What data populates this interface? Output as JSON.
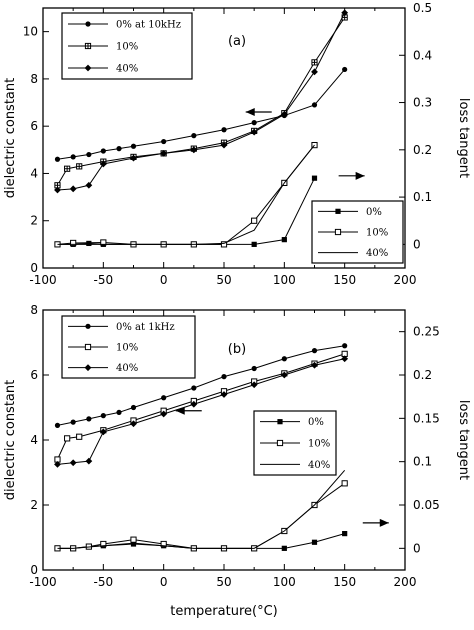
{
  "chart_data": [
    {
      "type": "line",
      "panel_label": "(a)",
      "xlabel": "",
      "ylabel": "dielectric constant",
      "y2label": "loss tangent",
      "xlim": [
        -100,
        200
      ],
      "ylim": [
        0,
        11
      ],
      "y2lim": [
        -0.05,
        0.5
      ],
      "xticks": [
        -100,
        -50,
        0,
        50,
        100,
        150,
        200
      ],
      "yticks": [
        0,
        2,
        4,
        6,
        8,
        10
      ],
      "y2ticks": [
        0,
        0.1,
        0.2,
        0.3,
        0.4,
        0.5
      ],
      "legend_dielectric": {
        "position": "top-left",
        "entries": [
          "0% at 10kHz",
          "10%",
          "40%"
        ]
      },
      "legend_loss": {
        "position": "bottom-right",
        "entries": [
          "0%",
          "10%",
          "40%"
        ]
      },
      "series": [
        {
          "name": "0% at 10kHz",
          "axis": "left",
          "marker": "filled-circle",
          "x": [
            -88,
            -75,
            -62,
            -50,
            -37,
            -25,
            0,
            25,
            50,
            75,
            100,
            125,
            150
          ],
          "y": [
            4.6,
            4.7,
            4.8,
            4.95,
            5.05,
            5.15,
            5.35,
            5.6,
            5.85,
            6.15,
            6.45,
            6.9,
            8.4
          ]
        },
        {
          "name": "10%",
          "axis": "left",
          "marker": "crossed-square",
          "x": [
            -88,
            -80,
            -70,
            -50,
            -25,
            0,
            25,
            50,
            75,
            100,
            125,
            150
          ],
          "y": [
            3.5,
            4.2,
            4.3,
            4.5,
            4.7,
            4.85,
            5.05,
            5.3,
            5.8,
            6.55,
            8.7,
            10.6
          ]
        },
        {
          "name": "40%",
          "axis": "left",
          "marker": "filled-diamond",
          "x": [
            -88,
            -75,
            -62,
            -50,
            -25,
            0,
            25,
            50,
            75,
            100,
            125,
            150
          ],
          "y": [
            3.3,
            3.35,
            3.5,
            4.4,
            4.65,
            4.85,
            5.0,
            5.2,
            5.75,
            6.5,
            8.3,
            10.8
          ]
        },
        {
          "name": "0%",
          "axis": "right",
          "marker": "filled-square",
          "x": [
            -88,
            -75,
            -62,
            -50,
            -25,
            0,
            25,
            50,
            75,
            100,
            125
          ],
          "y": [
            0.0,
            0.0,
            0.002,
            0.0,
            0.0,
            0.0,
            0.0,
            0.0,
            0.0,
            0.01,
            0.14
          ]
        },
        {
          "name": "10%",
          "axis": "right",
          "marker": "open-square",
          "x": [
            -88,
            -75,
            -50,
            -25,
            0,
            25,
            50,
            75,
            100,
            125
          ],
          "y": [
            0.0,
            0.003,
            0.004,
            0.0,
            0.0,
            0.0,
            0.0,
            0.05,
            0.13,
            0.21
          ]
        },
        {
          "name": "40%",
          "axis": "right",
          "marker": "none",
          "x": [
            -88,
            -50,
            -25,
            0,
            25,
            50,
            75,
            100,
            125
          ],
          "y": [
            0.0,
            0.0,
            0.0,
            0.0,
            0.0,
            0.002,
            0.03,
            0.13,
            0.21
          ]
        }
      ],
      "annotations": [
        {
          "text": "←",
          "direction": "left",
          "x": 68,
          "y": 6.6
        },
        {
          "text": "→",
          "direction": "right",
          "x": 145,
          "y": 3.9
        }
      ]
    },
    {
      "type": "line",
      "panel_label": "(b)",
      "xlabel": "temperature(°C)",
      "ylabel": "dielectric constant",
      "y2label": "loss tangent",
      "xlim": [
        -100,
        200
      ],
      "ylim": [
        0,
        8
      ],
      "y2lim": [
        -0.025,
        0.275
      ],
      "xticks": [
        -100,
        -50,
        0,
        50,
        100,
        150,
        200
      ],
      "yticks": [
        0,
        2,
        4,
        6,
        8
      ],
      "y2ticks": [
        0,
        0.05,
        0.1,
        0.15,
        0.2,
        0.25
      ],
      "legend_dielectric": {
        "position": "top-left",
        "entries": [
          "0% at 1kHz",
          "10%",
          "40%"
        ]
      },
      "legend_loss": {
        "position": "center-right",
        "entries": [
          "0%",
          "10%",
          "40%"
        ]
      },
      "series": [
        {
          "name": "0% at 1kHz",
          "axis": "left",
          "marker": "filled-circle",
          "x": [
            -88,
            -75,
            -62,
            -50,
            -37,
            -25,
            0,
            25,
            50,
            75,
            100,
            125,
            150
          ],
          "y": [
            4.45,
            4.55,
            4.65,
            4.75,
            4.85,
            5.0,
            5.3,
            5.6,
            5.95,
            6.2,
            6.5,
            6.75,
            6.9
          ]
        },
        {
          "name": "10%",
          "axis": "left",
          "marker": "open-square",
          "x": [
            -88,
            -80,
            -70,
            -50,
            -25,
            0,
            25,
            50,
            75,
            100,
            125,
            150
          ],
          "y": [
            3.4,
            4.05,
            4.1,
            4.3,
            4.6,
            4.9,
            5.2,
            5.5,
            5.8,
            6.05,
            6.35,
            6.65
          ]
        },
        {
          "name": "40%",
          "axis": "left",
          "marker": "filled-diamond",
          "x": [
            -88,
            -75,
            -62,
            -50,
            -25,
            0,
            25,
            50,
            75,
            100,
            125,
            150
          ],
          "y": [
            3.25,
            3.3,
            3.35,
            4.25,
            4.5,
            4.8,
            5.1,
            5.4,
            5.7,
            6.0,
            6.3,
            6.5
          ]
        },
        {
          "name": "0%",
          "axis": "right",
          "marker": "filled-square",
          "x": [
            -88,
            -75,
            -62,
            -50,
            -25,
            0,
            25,
            50,
            75,
            100,
            125,
            150
          ],
          "y": [
            0.0,
            0.0,
            0.002,
            0.003,
            0.005,
            0.003,
            0.0,
            0.0,
            0.0,
            0.0,
            0.007,
            0.017
          ]
        },
        {
          "name": "10%",
          "axis": "right",
          "marker": "open-square",
          "x": [
            -88,
            -75,
            -62,
            -50,
            -25,
            0,
            25,
            50,
            75,
            100,
            125,
            150
          ],
          "y": [
            0.0,
            0.0,
            0.002,
            0.005,
            0.01,
            0.005,
            0.0,
            0.0,
            0.0,
            0.02,
            0.05,
            0.075
          ]
        },
        {
          "name": "40%",
          "axis": "right",
          "marker": "none",
          "x": [
            -88,
            -75,
            -50,
            -25,
            0,
            25,
            50,
            75,
            100,
            125,
            150
          ],
          "y": [
            0.0,
            0.0,
            0.003,
            0.006,
            0.003,
            0.0,
            0.0,
            0.0,
            0.02,
            0.05,
            0.09
          ]
        }
      ],
      "annotations": [
        {
          "text": "←",
          "direction": "left",
          "x": 10,
          "y": 4.9
        },
        {
          "text": "→",
          "direction": "right",
          "x": 165,
          "y": 1.45
        }
      ]
    }
  ]
}
